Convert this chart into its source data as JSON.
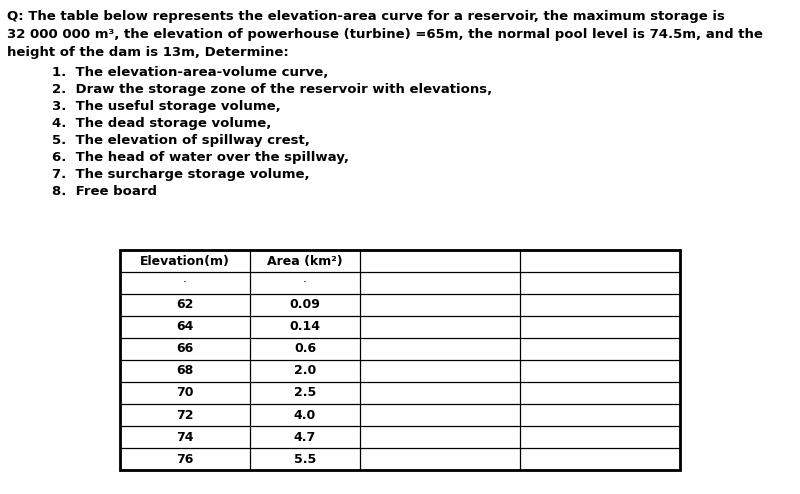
{
  "line1": "Q: The table below represents the elevation-area curve for a reservoir, the maximum storage is",
  "line2": "32 000 000 m³, the elevation of powerhouse (turbine) =65m, the normal pool level is 74.5m, and the",
  "line3": "height of the dam is 13m, Determine:",
  "items": [
    "1.  The elevation-area-volume curve,",
    "2.  Draw the storage zone of the reservoir with elevations,",
    "3.  The useful storage volume,",
    "4.  The dead storage volume,",
    "5.  The elevation of spillway crest,",
    "6.  The head of water over the spillway,",
    "7.  The surcharge storage volume,",
    "8.  Free board"
  ],
  "col1_header": "Elevation(m)",
  "col2_header": "Area (km²)",
  "elevations": [
    62,
    64,
    66,
    68,
    70,
    72,
    74,
    76
  ],
  "areas": [
    "0.09",
    "0.14",
    "0.6",
    "2.0",
    "2.5",
    "4.0",
    "4.7",
    "5.5"
  ],
  "bg_color": "#ffffff",
  "text_color": "#000000",
  "font_size_body": 9.5,
  "font_size_table": 9.0
}
